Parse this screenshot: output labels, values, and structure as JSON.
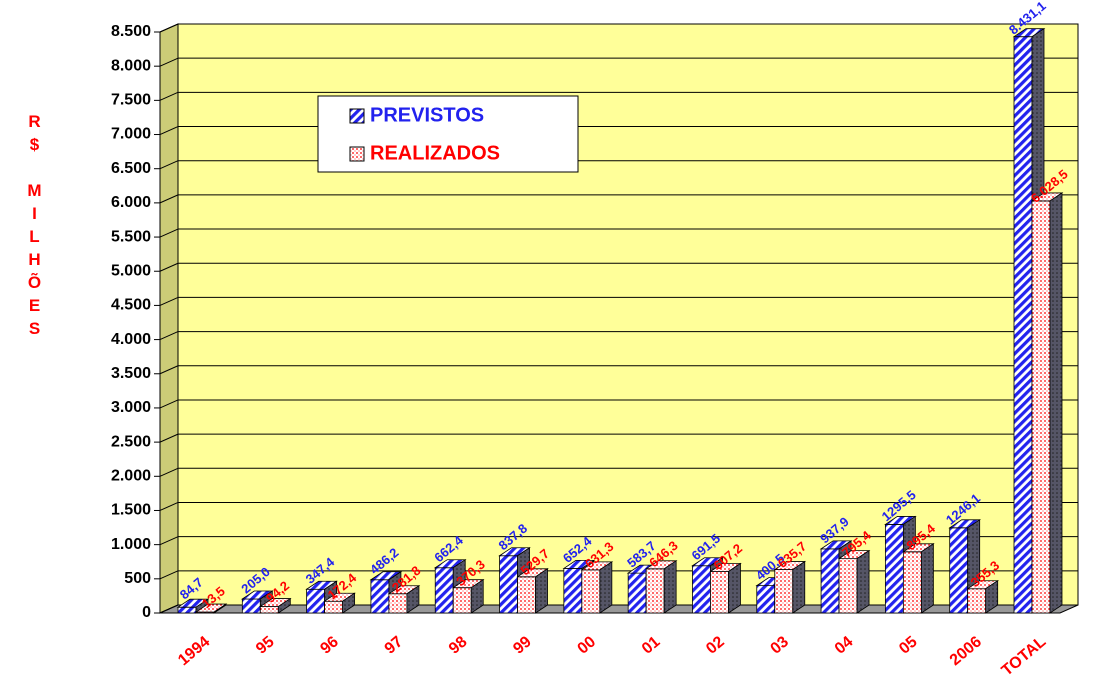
{
  "chart_data": {
    "type": "bar3d",
    "y_label": "R$ MILHÕES",
    "categories": [
      "1994",
      "95",
      "96",
      "97",
      "98",
      "99",
      "00",
      "01",
      "02",
      "03",
      "04",
      "05",
      "2006",
      "TOTAL"
    ],
    "series": [
      {
        "name": "PREVISTOS",
        "color": "#2222ee",
        "values": [
          84.7,
          205.0,
          347.4,
          486.2,
          662.4,
          837.8,
          652.4,
          583.7,
          691.5,
          400.5,
          937.9,
          1295.5,
          1246.1,
          8431.1
        ],
        "value_labels": [
          "84,7",
          "205,0",
          "347,4",
          "486,2",
          "662,4",
          "837,8",
          "652,4",
          "583,7",
          "691,5",
          "400,5",
          "937,9",
          "1295,5",
          "1246,1",
          "8.431,1"
        ]
      },
      {
        "name": "REALIZADOS",
        "color": "#ff0000",
        "values": [
          13.5,
          94.2,
          172.4,
          281.8,
          370.3,
          529.7,
          631.3,
          646.3,
          607.2,
          635.7,
          795.4,
          895.4,
          355.3,
          6028.5
        ],
        "value_labels": [
          "13,5",
          "94,2",
          "172,4",
          "281,8",
          "370,3",
          "529,7",
          "631,3",
          "646,3",
          "607,2",
          "635,7",
          "795,4",
          "895,4",
          "355,3",
          "6.028,5"
        ]
      }
    ],
    "ylim": [
      0,
      8500
    ],
    "yticks": [
      0,
      500,
      {
        "value": 1000,
        "label": "1.000"
      },
      {
        "value": 1500,
        "label": "1.500"
      },
      {
        "value": 2000,
        "label": "2.000"
      },
      {
        "value": 2500,
        "label": "2.500"
      },
      {
        "value": 3000,
        "label": "3.000"
      },
      {
        "value": 3500,
        "label": "3.500"
      },
      {
        "value": 4000,
        "label": "4.000"
      },
      {
        "value": 4500,
        "label": "4.500"
      },
      {
        "value": 5000,
        "label": "5.000"
      },
      {
        "value": 5500,
        "label": "5.500"
      },
      {
        "value": 6000,
        "label": "6.000"
      },
      {
        "value": 6500,
        "label": "6.500"
      },
      {
        "value": 7000,
        "label": "7.000"
      },
      {
        "value": 7500,
        "label": "7.500"
      },
      {
        "value": 8000,
        "label": "8.000"
      },
      {
        "value": 8500,
        "label": "8.500"
      }
    ],
    "grid": true,
    "wall_color": "#ffff99",
    "legend": "top-left"
  }
}
